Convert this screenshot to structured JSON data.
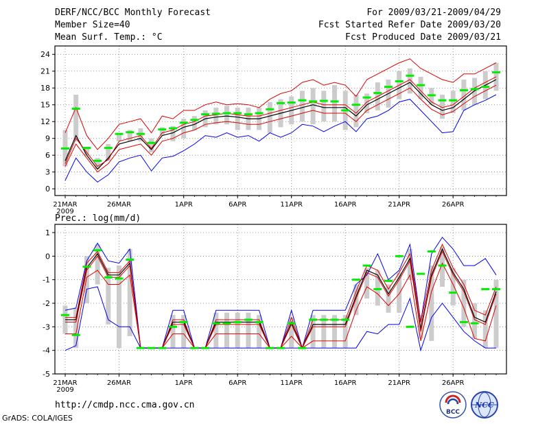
{
  "header": {
    "title": "DERF/NCC/BCC Monthly Forecast",
    "member_size": "Member Size=40",
    "variable_top": "Mean Surf. Temp.: °C",
    "period": "For 2009/03/21-2009/04/29",
    "started": "Fcst Started Refer Date 2009/03/20",
    "produced": "Fcst Produced Date 2009/03/21"
  },
  "footer": {
    "url": "http://cmdp.ncc.cma.gov.cn",
    "grads": "GrADS: COLA/IGES",
    "logo_bcc": "BCC",
    "logo_ncc": "NCC"
  },
  "colors": {
    "blue": "#0000ee",
    "red": "#dd0000",
    "black": "#000000",
    "green": "#00ee00",
    "box": "#cccccc",
    "grid": "#777777"
  },
  "chart_data": [
    {
      "type": "line",
      "title": "Mean Surf. Temp.: °C",
      "x_tick_labels": [
        "21MAR",
        "26MAR",
        "1APR",
        "6APR",
        "11APR",
        "16APR",
        "21APR",
        "26APR"
      ],
      "x_tick_days": [
        1,
        6,
        12,
        17,
        22,
        27,
        32,
        37
      ],
      "year_label": "2009",
      "ylim": [
        -1.2,
        25.5
      ],
      "yticks": [
        0,
        3,
        6,
        9,
        12,
        15,
        18,
        21,
        24
      ],
      "ytick_labels": [
        "0",
        "3",
        "6",
        "9",
        "12",
        "15",
        "18",
        "21",
        "24"
      ],
      "series": [
        {
          "name": "max",
          "values": [
            1.5,
            5.5,
            3,
            1.2,
            2.5,
            4.8,
            5.5,
            6,
            3.2,
            5.5,
            5.8,
            6.8,
            8,
            9.5,
            9.2,
            10,
            9.2,
            9.5,
            8.5,
            10,
            9.2,
            10,
            11.5,
            11.2,
            10.2,
            11.2,
            12,
            10.2,
            12.5,
            13,
            14,
            15.5,
            16,
            14,
            12,
            10,
            10.2,
            14,
            15,
            15.8,
            16.8
          ]
        },
        {
          "name": "upper",
          "values": [
            10,
            14.5,
            9.5,
            7,
            9,
            11.5,
            12,
            12.5,
            10,
            13,
            12.5,
            14,
            14,
            15,
            15.5,
            15,
            15.2,
            15,
            14.5,
            16,
            17,
            17.5,
            19,
            19.5,
            18.5,
            19,
            18.5,
            16.5,
            19.5,
            20.5,
            21.5,
            22.5,
            23.2,
            21.5,
            20.5,
            19.5,
            19,
            20.5,
            20.5,
            21.5,
            22.5
          ]
        },
        {
          "name": "lower",
          "values": [
            4,
            8,
            5.5,
            3,
            4.5,
            7,
            7.5,
            8,
            6,
            8.5,
            9,
            10,
            10.5,
            11.5,
            11.8,
            12,
            11.8,
            11.5,
            11.5,
            12,
            12.5,
            13,
            13.5,
            14,
            13.5,
            13.5,
            13.5,
            12,
            14,
            15,
            16,
            17,
            18,
            16,
            14.2,
            13.2,
            13.8,
            15.2,
            16.5,
            17.5,
            18.5
          ]
        },
        {
          "name": "mean",
          "values": [
            5,
            9.5,
            6,
            3.5,
            5.5,
            8,
            8.5,
            9,
            7,
            9.5,
            10,
            11,
            11.5,
            12.5,
            12.8,
            13,
            12.8,
            12.5,
            12.5,
            13,
            13.5,
            14,
            14.5,
            15,
            14.5,
            14.5,
            14.5,
            13,
            15,
            16,
            17,
            18,
            19,
            17,
            15,
            14,
            14.5,
            16,
            17.5,
            18.5,
            19.5
          ]
        },
        {
          "name": "member",
          "values": [
            4.5,
            9,
            6.5,
            4,
            5.2,
            8.5,
            9,
            9.5,
            7.2,
            10,
            10.5,
            11.5,
            12,
            13,
            13.2,
            13.5,
            13.2,
            13,
            13,
            13.5,
            14,
            14.5,
            15,
            15.5,
            15,
            15,
            15,
            13.5,
            15.5,
            16.5,
            17.5,
            18.5,
            19.5,
            17.5,
            15.5,
            14.5,
            15,
            16.5,
            18,
            19,
            20
          ]
        },
        {
          "name": "control",
          "values": [
            7.2,
            14.3,
            7.3,
            5,
            7.3,
            9.8,
            10.1,
            9.8,
            8.2,
            10.6,
            10.8,
            11.8,
            12.3,
            13.3,
            13.4,
            13.5,
            13.5,
            13.3,
            13.5,
            14.2,
            15.3,
            15.4,
            15.8,
            15.6,
            15.7,
            15.6,
            14,
            15,
            16.3,
            17.1,
            18.2,
            19.2,
            20.2,
            18.5,
            16.7,
            15.8,
            15.8,
            17.6,
            17.8,
            18.2,
            20.8
          ]
        },
        {
          "name": "box_high",
          "values": [
            10.5,
            16.8,
            7.5,
            5.5,
            8,
            10,
            10.5,
            10.8,
            9,
            11,
            11.2,
            12.5,
            13,
            14,
            14.5,
            14.8,
            14.5,
            14.5,
            14.5,
            15.5,
            16,
            16.5,
            17.5,
            18,
            17.5,
            18.5,
            17.5,
            16.8,
            17,
            19,
            19.5,
            21,
            21.5,
            20,
            18,
            16.8,
            17.5,
            19.5,
            19.8,
            21,
            22.5
          ]
        },
        {
          "name": "box_low",
          "values": [
            4,
            8.5,
            6,
            3.5,
            5,
            8.5,
            8.5,
            8.5,
            6.5,
            9.5,
            8.5,
            9,
            10.5,
            11,
            11.5,
            11.5,
            10.5,
            10.5,
            10.5,
            10,
            11,
            11.5,
            12,
            11.5,
            12,
            12,
            10.5,
            11,
            13.5,
            14,
            14.5,
            16,
            17,
            16,
            15,
            12.5,
            13.5,
            14,
            15,
            16,
            17.5
          ]
        }
      ]
    },
    {
      "type": "line",
      "title": "Prec.: log(mm/d)",
      "x_tick_labels": [
        "21MAR",
        "26MAR",
        "1APR",
        "6APR",
        "11APR",
        "16APR",
        "21APR",
        "26APR"
      ],
      "x_tick_days": [
        1,
        6,
        12,
        17,
        22,
        27,
        32,
        37
      ],
      "year_label": "2009",
      "ylim": [
        -5,
        1.35
      ],
      "yticks": [
        -5,
        -4,
        -3,
        -2,
        -1,
        0,
        1
      ],
      "ytick_labels": [
        "-5",
        "-4",
        "-3",
        "-2",
        "-1",
        "0",
        "1"
      ],
      "series": [
        {
          "name": "max",
          "values": [
            -2.3,
            -2.2,
            -0.2,
            0.55,
            -0.2,
            -0.3,
            0.3,
            -3.9,
            -3.9,
            -3.9,
            -2.3,
            -2.3,
            -3.9,
            -3.9,
            -2.3,
            -2.3,
            -2.3,
            -2.3,
            -2.3,
            -3.9,
            -3.9,
            -2.3,
            -3.9,
            -2.3,
            -2.3,
            -2.3,
            -2.3,
            -1.2,
            -0.8,
            0.1,
            -1,
            -0.6,
            0.5,
            -2.8,
            0.1,
            0.8,
            0.3,
            -0.4,
            -0.4,
            -0.1,
            -0.8
          ]
        },
        {
          "name": "upper",
          "values": [
            -2.6,
            -2.6,
            -0.3,
            0.2,
            -0.7,
            -0.7,
            -0.2,
            -3.9,
            -3.9,
            -3.9,
            -2.7,
            -2.7,
            -3.9,
            -3.9,
            -2.7,
            -2.7,
            -2.7,
            -2.7,
            -2.7,
            -3.9,
            -3.9,
            -2.6,
            -3.9,
            -2.7,
            -2.7,
            -2.7,
            -2.7,
            -1.5,
            -0.4,
            -0.6,
            -1.4,
            -0.7,
            0.1,
            -2.8,
            -0.6,
            0.5,
            -0.5,
            -1.2,
            -2.3,
            -2.5,
            -1.3
          ]
        },
        {
          "name": "mean",
          "values": [
            -2.7,
            -2.7,
            -0.5,
            0.1,
            -0.8,
            -0.8,
            -0.3,
            -3.9,
            -3.9,
            -3.9,
            -2.8,
            -2.8,
            -3.9,
            -3.9,
            -2.8,
            -2.8,
            -2.8,
            -2.8,
            -2.8,
            -3.9,
            -3.9,
            -2.8,
            -3.9,
            -2.9,
            -2.9,
            -2.9,
            -2.9,
            -1.7,
            -0.6,
            -0.8,
            -1.6,
            -0.9,
            -0.1,
            -3.1,
            -0.8,
            0.3,
            -0.7,
            -1.4,
            -2.6,
            -2.8,
            -1.5
          ]
        },
        {
          "name": "member",
          "values": [
            -2.8,
            -2.8,
            -0.6,
            0,
            -0.9,
            -0.9,
            -0.4,
            -3.9,
            -3.9,
            -3.9,
            -2.9,
            -2.9,
            -3.9,
            -3.9,
            -2.9,
            -2.9,
            -2.9,
            -2.9,
            -2.9,
            -3.9,
            -3.9,
            -2.9,
            -3.9,
            -3,
            -3,
            -3,
            -3,
            -1.8,
            -0.7,
            -0.9,
            -1.7,
            -1,
            -0.2,
            -3.2,
            -0.9,
            0.2,
            -0.8,
            -1.5,
            -2.7,
            -2.9,
            -1.6
          ]
        },
        {
          "name": "lower",
          "values": [
            -3.3,
            -3.3,
            -0.9,
            -0.6,
            -1.2,
            -1.2,
            -0.8,
            -3.9,
            -3.9,
            -3.9,
            -3.3,
            -3.3,
            -3.9,
            -3.9,
            -3.3,
            -3.3,
            -3.3,
            -3.3,
            -3.3,
            -3.9,
            -3.9,
            -3.4,
            -3.9,
            -3.6,
            -3.6,
            -3.6,
            -3.6,
            -2.3,
            -1.3,
            -1.6,
            -2.1,
            -1.6,
            -0.8,
            -3.6,
            -1.5,
            -0.3,
            -1.2,
            -2.2,
            -3.5,
            -3.6,
            -2.1
          ]
        },
        {
          "name": "min",
          "values": [
            -4,
            -3.8,
            -1.4,
            -1.3,
            -2.7,
            -3,
            -3,
            -3.9,
            -3.9,
            -3.9,
            -3.9,
            -3.9,
            -3.9,
            -3.9,
            -3.9,
            -3.9,
            -3.9,
            -3.9,
            -3.9,
            -3.9,
            -3.9,
            -3.9,
            -3.9,
            -3.9,
            -3.9,
            -3.9,
            -3.9,
            -3.9,
            -3.2,
            -3.3,
            -2.9,
            -2.9,
            -1.8,
            -4,
            -2.6,
            -2,
            -2.6,
            -3.2,
            -3.6,
            -3.9,
            -3.9
          ]
        },
        {
          "name": "control",
          "values": [
            -2.5,
            -3.35,
            -0.45,
            0.25,
            -0.9,
            -0.95,
            -0.15,
            -3.9,
            -3.9,
            -3.9,
            -3,
            -2.8,
            -3.9,
            -3.9,
            -2.85,
            -2.85,
            -2.8,
            -2.7,
            -2.8,
            -3.9,
            -3.9,
            -2.85,
            -3.9,
            -2.7,
            -2.7,
            -2.7,
            -2.7,
            -1,
            -0.4,
            -1.4,
            -1.05,
            0,
            -3,
            -0.75,
            0.2,
            -0.4,
            -1.55,
            -2.8,
            -2.85,
            -1.4,
            -1.4
          ]
        },
        {
          "name": "box_high",
          "values": [
            -2.1,
            -2.2,
            0,
            0.5,
            -0.5,
            -0.4,
            0.3,
            -3.9,
            -3.9,
            -3.9,
            -2.5,
            -2.5,
            -3.9,
            -3.9,
            -2.4,
            -2.4,
            -2.4,
            -2.4,
            -2.5,
            -3.9,
            -3.9,
            -2.6,
            -3.9,
            -2.5,
            -2.5,
            -2.5,
            -2.5,
            -1.2,
            -0.5,
            -0.6,
            -1.2,
            -0.7,
            0.3,
            -2.5,
            -0.4,
            0.4,
            -0.5,
            -1,
            -2,
            -2.3,
            -1
          ]
        },
        {
          "name": "box_low",
          "values": [
            -3.3,
            -3.9,
            -2,
            -1.2,
            -2.9,
            -3.9,
            -3.4,
            -3.9,
            -3.9,
            -3.9,
            -3.9,
            -3.9,
            -3.9,
            -3.9,
            -3.9,
            -3.9,
            -3.9,
            -3.9,
            -3.9,
            -3.9,
            -3.9,
            -3.9,
            -3.9,
            -3.9,
            -3.9,
            -3.9,
            -3.9,
            -2.5,
            -1.8,
            -2.1,
            -2.4,
            -2.4,
            -1,
            -3.5,
            -3.6,
            -1.3,
            -2.1,
            -3,
            -3.5,
            -3.9,
            -3.9
          ]
        }
      ]
    }
  ]
}
